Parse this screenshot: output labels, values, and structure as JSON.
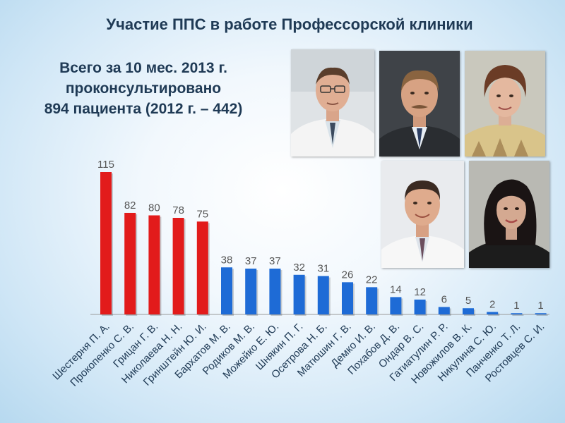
{
  "title": "Участие ППС в работе Профессорской клиники",
  "summary": {
    "line1": "Всего за 10 мес. 2013 г.",
    "line2": "проконсультировано",
    "line3": "894 пациента (2012 г. – 442)"
  },
  "colors": {
    "highlight": "#e21b1b",
    "normal": "#1e6bd6",
    "text": "#1f3a55",
    "axis": "#9a9a9a"
  },
  "photos": [
    {
      "name": "photo-doctor-glasses"
    },
    {
      "name": "photo-man-mustache"
    },
    {
      "name": "photo-woman-older"
    },
    {
      "name": "photo-young-man-tie"
    },
    {
      "name": "photo-woman-dark-hair"
    }
  ],
  "chart_data": {
    "type": "bar",
    "title": "",
    "xlabel": "",
    "ylabel": "",
    "ylim": [
      0,
      115
    ],
    "grid": false,
    "categories": [
      "Шестерня П. А.",
      "Прокопенко С. В.",
      "Грицан Г. В.",
      "Николаева Н. Н.",
      "Гринштейн Ю. И.",
      "Бархатов М. В.",
      "Родиков М. В.",
      "Можейко Е. Ю.",
      "Шнякин П. Г.",
      "Осетрова Н. Б.",
      "Матюшин Г. В.",
      "Демко И. В.",
      "Похабов Д. В.",
      "Ондар В. С.",
      "Гатиатулин Р. Р.",
      "Новожилов В. К.",
      "Никулина С. Ю.",
      "Панченко Т. Л.",
      "Ростовцев С. И."
    ],
    "values": [
      115,
      82,
      80,
      78,
      75,
      38,
      37,
      37,
      32,
      31,
      26,
      22,
      14,
      12,
      6,
      5,
      2,
      1,
      1
    ],
    "highlighted_count": 5
  }
}
